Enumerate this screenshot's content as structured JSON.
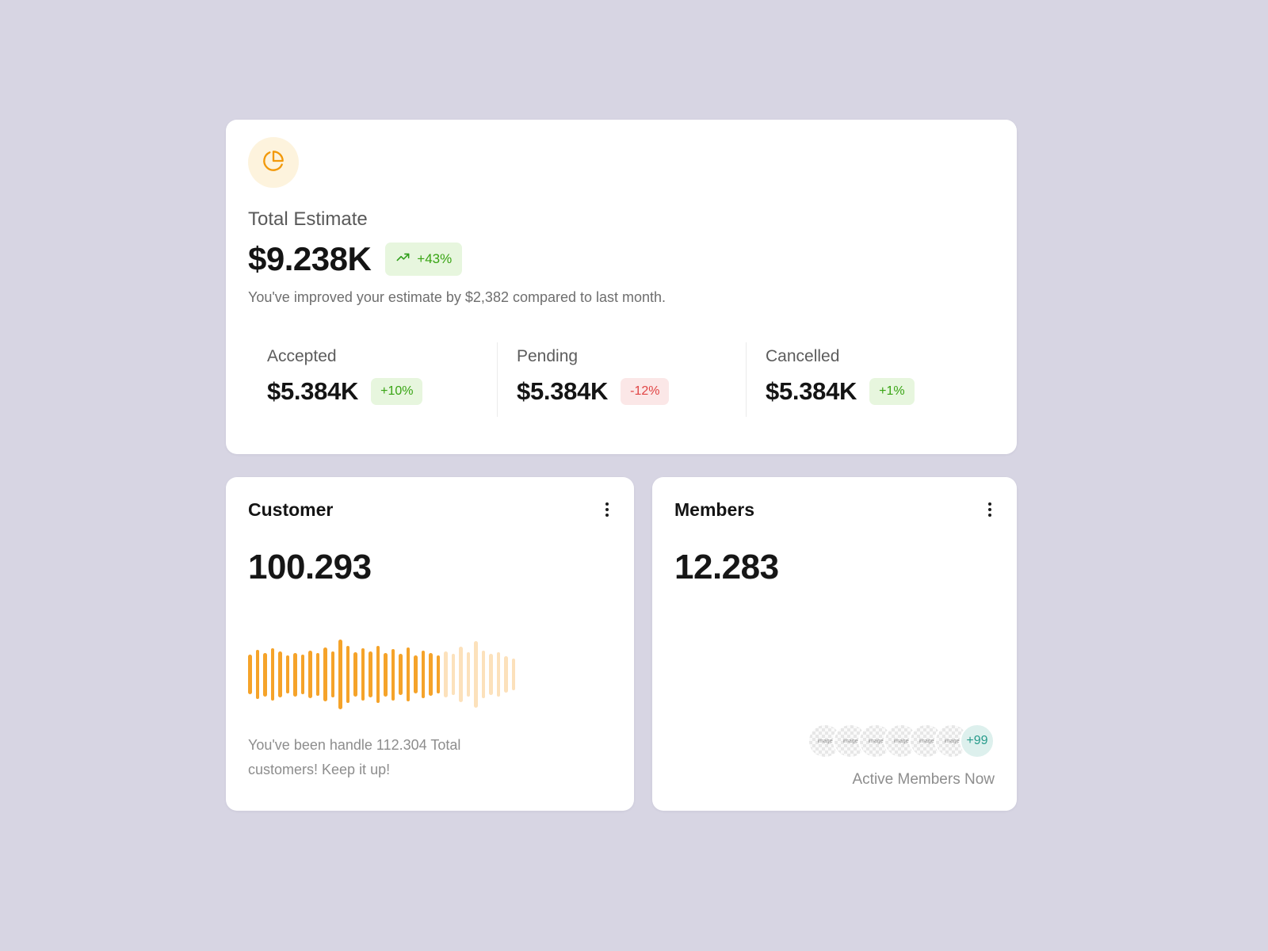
{
  "colors": {
    "background": "#d7d5e3",
    "card": "#ffffff",
    "accent_orange": "#f5a32a",
    "accent_orange_bg": "#fdf3dd",
    "positive_green": "#38a413",
    "positive_green_bg": "#e7f6de",
    "negative_red": "#e14444",
    "negative_red_bg": "#fbe7e7",
    "teal": "#279b8b",
    "teal_bg": "#ddf0ed"
  },
  "estimate": {
    "icon": "pie-chart-icon",
    "title": "Total Estimate",
    "value": "$9.238K",
    "trend": "+43%",
    "description": "You've improved your estimate by $2,382 compared to last month.",
    "breakdown": [
      {
        "label": "Accepted",
        "value": "$5.384K",
        "change": "+10%",
        "positive": true
      },
      {
        "label": "Pending",
        "value": "$5.384K",
        "change": "-12%",
        "positive": false
      },
      {
        "label": "Cancelled",
        "value": "$5.384K",
        "change": "+1%",
        "positive": true
      }
    ]
  },
  "customer": {
    "title": "Customer",
    "value": "100.293",
    "caption": "You've been handle 112.304 Total customers! Keep it up!"
  },
  "members": {
    "title": "Members",
    "value": "12.283",
    "avatar_count": 6,
    "avatar_label": "image",
    "overflow": "+99",
    "caption": "Active Members Now"
  },
  "chart_data": {
    "type": "bar",
    "title": "Customer activity waveform (decorative, unlabeled axes)",
    "values": [
      50,
      62,
      55,
      66,
      58,
      48,
      55,
      50,
      60,
      54,
      68,
      58,
      88,
      72,
      56,
      66,
      58,
      72,
      55,
      65,
      52,
      68,
      48,
      60,
      54,
      48,
      58,
      52,
      70,
      56,
      84,
      60,
      52,
      56,
      46,
      40
    ],
    "fade_start_index": 26,
    "faded_opacity": 0.32,
    "bar_color": "#f5a32a",
    "xlabel": "",
    "ylabel": ""
  }
}
